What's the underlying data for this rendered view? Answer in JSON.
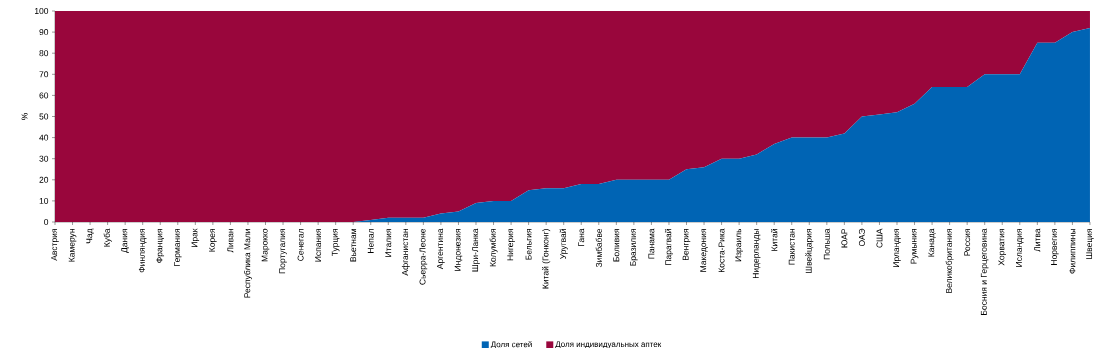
{
  "chart_data": {
    "type": "area",
    "stacked": true,
    "ylabel": "%",
    "ylim": [
      0,
      100
    ],
    "yticks": [
      0,
      10,
      20,
      30,
      40,
      50,
      60,
      70,
      80,
      90,
      100
    ],
    "legend": "bottom",
    "grid": false,
    "categories": [
      "Австрия",
      "Камерун",
      "Чад",
      "Куба",
      "Дания",
      "Финляндия",
      "Франция",
      "Германия",
      "Ирак",
      "Корея",
      "Ливан",
      "Республика Мали",
      "Марокко",
      "Португалия",
      "Сенегал",
      "Испания",
      "Турция",
      "Вьетнам",
      "Непал",
      "Италия",
      "Афганистан",
      "Сьерра-Леоне",
      "Аргентина",
      "Индонезия",
      "Шри-Ланка",
      "Колумбия",
      "Нигерия",
      "Бельгия",
      "Китай (Гонконг)",
      "Уругвай",
      "Гана",
      "Зимбабве",
      "Боливия",
      "Бразилия",
      "Панама",
      "Парагвай",
      "Венгрия",
      "Македония",
      "Коста-Рика",
      "Израиль",
      "Нидерланды",
      "Китай",
      "Пакистан",
      "Швейцария",
      "Польша",
      "ЮАР",
      "ОАЭ",
      "США",
      "Ирландия",
      "Румыния",
      "Канада",
      "Великобритания",
      "Россия",
      "Босния и Герцеговина",
      "Хорватия",
      "Исландия",
      "Литва",
      "Норвегия",
      "Филиппины",
      "Швеция"
    ],
    "series": [
      {
        "name": "Доля сетей",
        "color": "#0064b4",
        "values": [
          0,
          0,
          0,
          0,
          0,
          0,
          0,
          0,
          0,
          0,
          0,
          0,
          0,
          0,
          0,
          0,
          0,
          0,
          1,
          2,
          2,
          2,
          4,
          5,
          9,
          10,
          10,
          15,
          16,
          16,
          18,
          18,
          20,
          20,
          20,
          20,
          25,
          26,
          30,
          30,
          32,
          37,
          40,
          40,
          40,
          42,
          50,
          51,
          52,
          56,
          64,
          64,
          64,
          70,
          70,
          70,
          85,
          85,
          90,
          92
        ]
      },
      {
        "name": "Доля индивидуальных аптек",
        "color": "#99063c",
        "values": [
          100,
          100,
          100,
          100,
          100,
          100,
          100,
          100,
          100,
          100,
          100,
          100,
          100,
          100,
          100,
          100,
          100,
          100,
          99,
          98,
          98,
          98,
          96,
          95,
          91,
          90,
          90,
          85,
          84,
          84,
          82,
          82,
          80,
          80,
          80,
          80,
          75,
          74,
          70,
          70,
          68,
          63,
          60,
          60,
          60,
          58,
          50,
          49,
          48,
          44,
          36,
          36,
          36,
          30,
          30,
          30,
          15,
          15,
          10,
          8
        ]
      }
    ]
  }
}
